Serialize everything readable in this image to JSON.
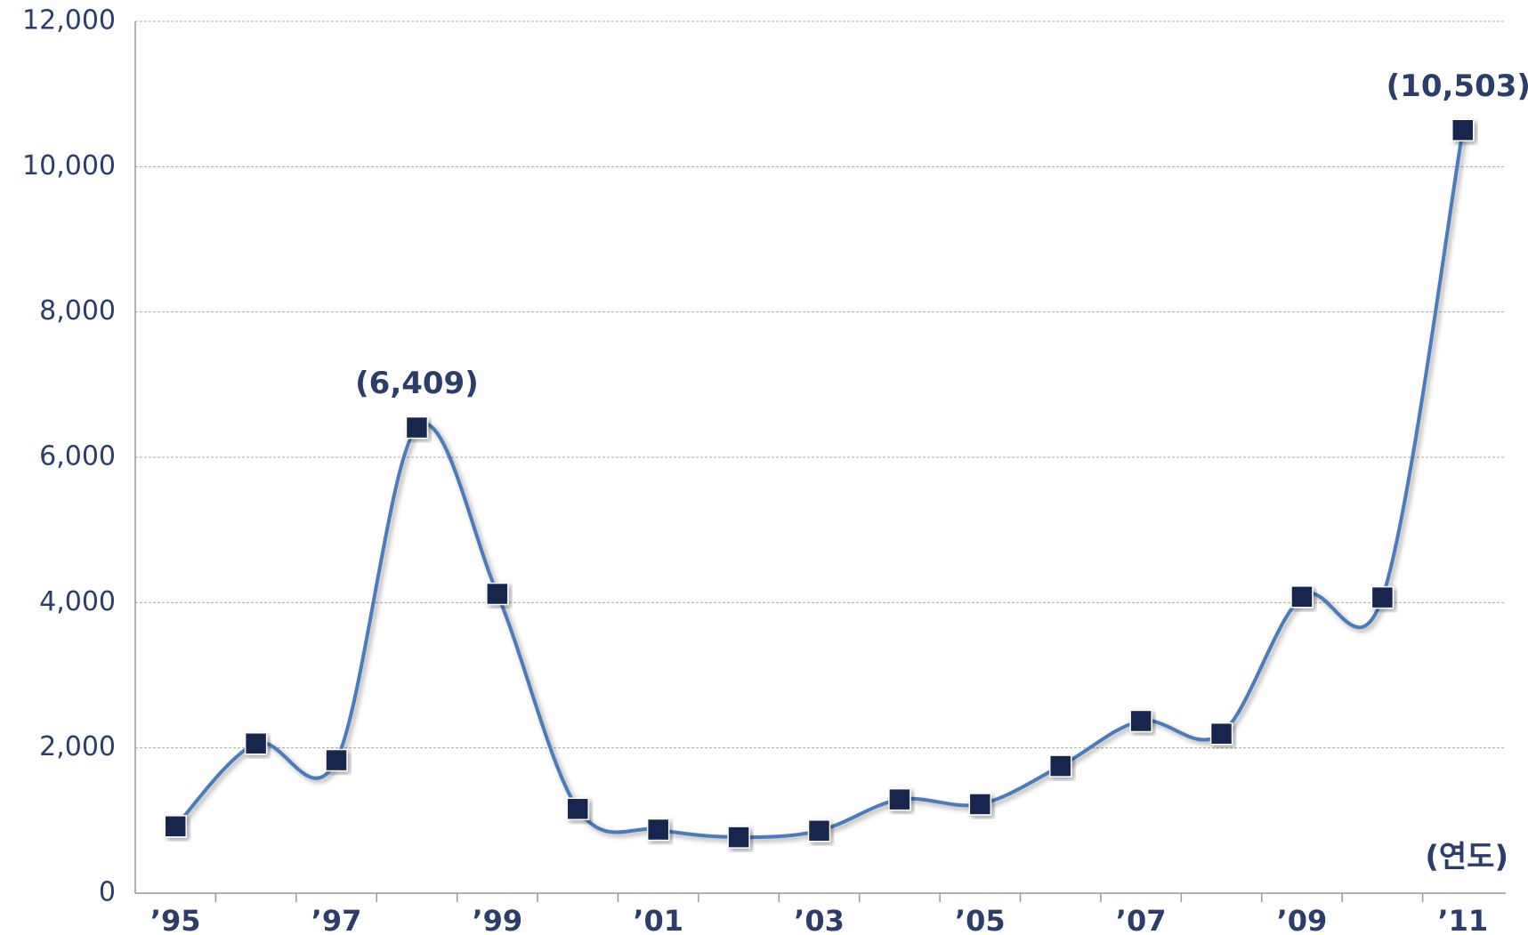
{
  "chart_data": {
    "type": "line",
    "categories": [
      "’95",
      null,
      "’97",
      null,
      "’99",
      null,
      "’01",
      null,
      "’03",
      null,
      "’05",
      null,
      "’07",
      null,
      "’09",
      null,
      "’11"
    ],
    "series": [
      {
        "color": "#4a7bbd",
        "marker_color": "#14254f",
        "values": [
          920,
          2060,
          1830,
          6409,
          4120,
          1160,
          875,
          770,
          860,
          1290,
          1225,
          1750,
          2370,
          2195,
          4080,
          4070,
          10503
        ],
        "value_labels": [
          null,
          null,
          null,
          "(6,409)",
          null,
          null,
          null,
          null,
          null,
          null,
          null,
          null,
          null,
          null,
          null,
          null,
          "(10,503)"
        ]
      }
    ],
    "ylim": [
      0,
      12000
    ],
    "yticks": [
      0,
      {
        "value": 2000,
        "label": "2,000"
      },
      {
        "value": 4000,
        "label": "4,000"
      },
      {
        "value": 6000,
        "label": "6,000"
      },
      {
        "value": 8000,
        "label": "8,000"
      },
      {
        "value": 10000,
        "label": "10,000"
      },
      {
        "value": 12000,
        "label": "12,000"
      }
    ],
    "x_axis_label": "(연도)",
    "grid": true
  }
}
